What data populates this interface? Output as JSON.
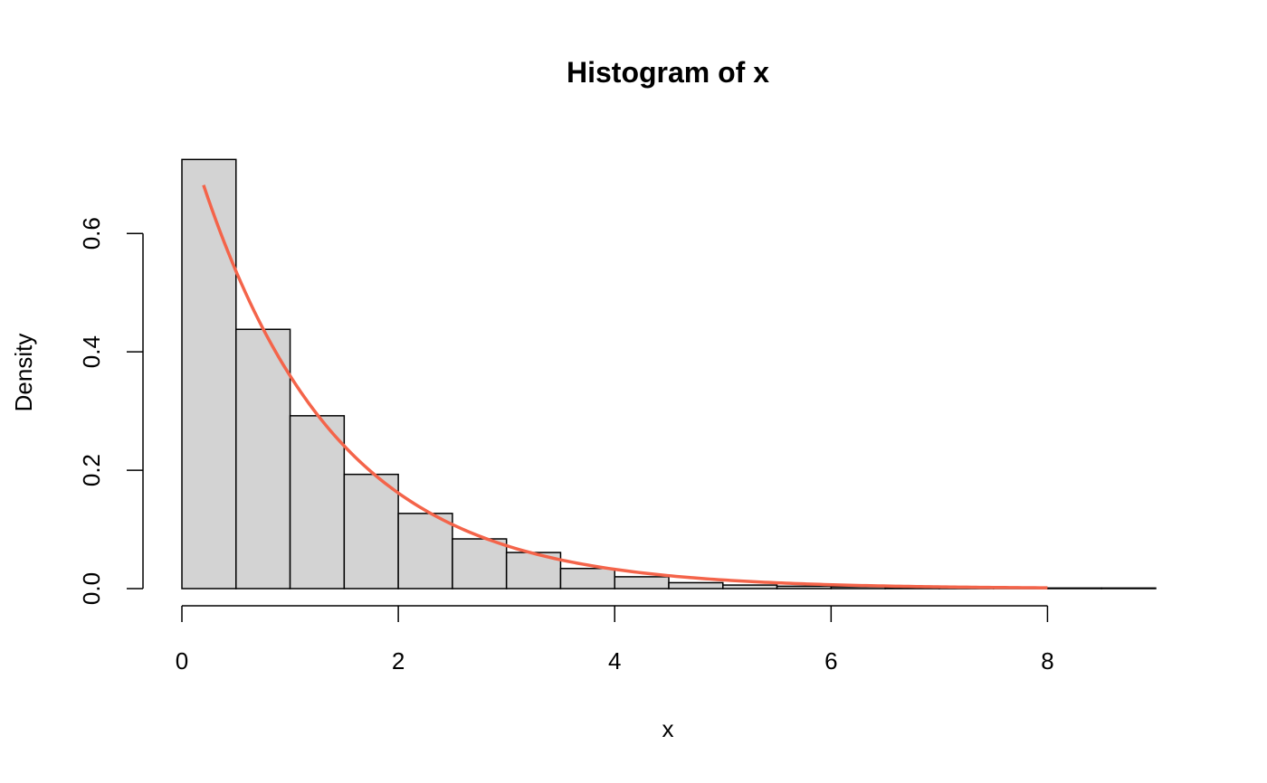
{
  "chart_data": {
    "type": "bar",
    "title": "Histogram of x",
    "xlabel": "x",
    "ylabel": "Density",
    "xlim": [
      0,
      9
    ],
    "ylim": [
      0,
      0.75
    ],
    "x_ticks": [
      0,
      2,
      4,
      6,
      8
    ],
    "x_tick_labels": [
      "0",
      "2",
      "4",
      "6",
      "8"
    ],
    "y_ticks": [
      0.0,
      0.2,
      0.4,
      0.6
    ],
    "y_tick_labels": [
      "0.0",
      "0.2",
      "0.4",
      "0.6"
    ],
    "bin_edges": [
      0,
      0.5,
      1.0,
      1.5,
      2.0,
      2.5,
      3.0,
      3.5,
      4.0,
      4.5,
      5.0,
      5.5,
      6.0,
      6.5,
      7.0,
      7.5,
      8.0,
      8.5,
      9.0
    ],
    "density": [
      0.725,
      0.438,
      0.292,
      0.193,
      0.127,
      0.084,
      0.061,
      0.034,
      0.02,
      0.01,
      0.006,
      0.004,
      0.003,
      0.002,
      0.001,
      0.001,
      0.001,
      0.001
    ],
    "bar_fill": "#d3d3d3",
    "curve": {
      "type": "line",
      "function": "density of exponential, rate 0.8",
      "rate": 0.8,
      "x_range": [
        0.2,
        8
      ],
      "color": "#f4644a"
    },
    "grid": false,
    "legend": "none"
  }
}
